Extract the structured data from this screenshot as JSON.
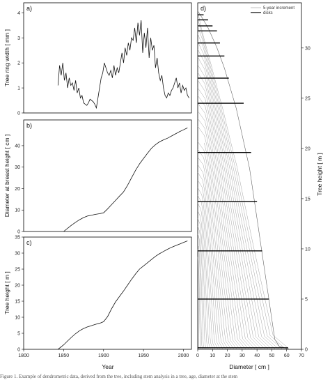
{
  "caption": "Figure 1. Example of dendrometric data, derived from the tree, including stem analysis in a tree, age, diameter at the stem",
  "chart_data": [
    {
      "id": "a",
      "panel_label": "a)",
      "type": "line",
      "ylabel": "Tree ring width [ mm ]",
      "xlim": [
        1800,
        2010
      ],
      "ylim": [
        0,
        4.4
      ],
      "yticks": [
        0,
        1,
        2,
        3,
        4
      ],
      "x": [
        1843,
        1845,
        1847,
        1849,
        1851,
        1853,
        1855,
        1857,
        1859,
        1861,
        1863,
        1865,
        1867,
        1869,
        1871,
        1873,
        1875,
        1877,
        1879,
        1881,
        1883,
        1885,
        1887,
        1889,
        1891,
        1893,
        1895,
        1897,
        1899,
        1901,
        1903,
        1905,
        1907,
        1909,
        1911,
        1913,
        1915,
        1917,
        1919,
        1921,
        1923,
        1925,
        1927,
        1929,
        1931,
        1933,
        1935,
        1937,
        1939,
        1941,
        1943,
        1945,
        1947,
        1949,
        1951,
        1953,
        1955,
        1957,
        1959,
        1961,
        1963,
        1965,
        1967,
        1969,
        1971,
        1973,
        1975,
        1977,
        1979,
        1981,
        1983,
        1985,
        1987,
        1989,
        1991,
        1993,
        1995,
        1997,
        1999,
        2001,
        2003,
        2005,
        2007
      ],
      "y": [
        1.1,
        1.9,
        1.5,
        2.0,
        1.3,
        1.6,
        1.0,
        1.4,
        1.1,
        1.2,
        0.9,
        1.3,
        0.8,
        1.0,
        0.6,
        0.7,
        0.4,
        0.35,
        0.3,
        0.4,
        0.55,
        0.5,
        0.45,
        0.35,
        0.2,
        0.6,
        1.0,
        1.4,
        1.6,
        2.0,
        1.8,
        1.6,
        1.5,
        1.7,
        1.4,
        1.9,
        1.5,
        1.8,
        1.6,
        2.0,
        2.4,
        2.0,
        2.6,
        2.3,
        2.8,
        2.5,
        3.0,
        2.9,
        3.4,
        2.8,
        3.6,
        3.1,
        3.7,
        2.4,
        3.2,
        2.6,
        3.4,
        2.2,
        3.0,
        2.5,
        2.7,
        1.8,
        2.2,
        1.6,
        1.3,
        1.5,
        1.0,
        0.7,
        0.6,
        0.8,
        0.7,
        0.9,
        1.0,
        1.2,
        1.4,
        1.0,
        1.2,
        0.8,
        1.1,
        0.9,
        1.0,
        0.7,
        0.6
      ]
    },
    {
      "id": "b",
      "panel_label": "b)",
      "type": "line",
      "ylabel": "Diameter at breast height [ cm ]",
      "xlim": [
        1800,
        2010
      ],
      "ylim": [
        0,
        52
      ],
      "yticks": [
        0,
        10,
        20,
        30,
        40
      ],
      "x": [
        1850,
        1855,
        1860,
        1865,
        1870,
        1875,
        1880,
        1885,
        1890,
        1895,
        1900,
        1905,
        1910,
        1915,
        1920,
        1925,
        1930,
        1935,
        1940,
        1945,
        1950,
        1955,
        1960,
        1965,
        1970,
        1975,
        1980,
        1985,
        1990,
        1995,
        2000,
        2005
      ],
      "y": [
        0,
        1.5,
        3,
        4.3,
        5.5,
        6.5,
        7.2,
        7.6,
        8.0,
        8.3,
        8.7,
        10.5,
        12.5,
        14.5,
        16.5,
        18.5,
        21.5,
        25,
        28.5,
        31.5,
        34,
        36.5,
        38.8,
        40.5,
        41.8,
        42.7,
        43.5,
        44.5,
        45.5,
        46.5,
        47.4,
        48.3
      ]
    },
    {
      "id": "c",
      "panel_label": "c)",
      "type": "line",
      "xlabel": "Year",
      "ylabel": "Tree height [ m ]",
      "xlim": [
        1800,
        2010
      ],
      "ylim": [
        0,
        35
      ],
      "yticks": [
        0,
        5,
        10,
        15,
        20,
        25,
        30,
        35
      ],
      "xticks": [
        1800,
        1850,
        1900,
        1950,
        2000
      ],
      "x": [
        1843,
        1850,
        1855,
        1860,
        1865,
        1870,
        1875,
        1880,
        1885,
        1890,
        1895,
        1900,
        1905,
        1910,
        1915,
        1920,
        1925,
        1930,
        1935,
        1940,
        1945,
        1950,
        1955,
        1960,
        1965,
        1970,
        1975,
        1980,
        1985,
        1990,
        1995,
        2000,
        2005
      ],
      "y": [
        0,
        1.4,
        2.6,
        3.8,
        4.9,
        5.8,
        6.5,
        7.0,
        7.4,
        7.8,
        8.1,
        8.6,
        10.2,
        12.6,
        14.8,
        16.5,
        18.2,
        20.0,
        21.8,
        23.5,
        25.0,
        26.0,
        27.0,
        28.0,
        29.0,
        29.8,
        30.5,
        31.2,
        31.8,
        32.3,
        32.8,
        33.3,
        33.8
      ]
    },
    {
      "id": "d",
      "panel_label": "d)",
      "type": "line",
      "xlabel": "Diameter [ cm ]",
      "ylabel": "Tree height [ m ]",
      "xlim": [
        0,
        70
      ],
      "ylim": [
        0,
        34.5
      ],
      "xticks": [
        0,
        10,
        20,
        30,
        40,
        50,
        60,
        70
      ],
      "yticks": [
        0,
        5,
        10,
        15,
        20,
        25,
        30
      ],
      "legend": {
        "position": "top-right",
        "entries": [
          {
            "label": "5-year increment",
            "style": "thin-grey"
          },
          {
            "label": "disks",
            "style": "thick-black"
          }
        ]
      },
      "outer_profile": {
        "height": [
          0,
          0.3,
          1,
          3,
          5,
          8,
          10,
          12,
          15,
          18,
          20,
          22,
          24,
          26,
          28,
          30,
          31,
          32,
          33,
          33.7
        ],
        "diameter": [
          62,
          55,
          52,
          50,
          48,
          45,
          43,
          41,
          38,
          35,
          32,
          29,
          26,
          22,
          18,
          13,
          10,
          7,
          3,
          0
        ]
      },
      "disks": [
        {
          "height": 0.15,
          "diameter": 61
        },
        {
          "height": 5.0,
          "diameter": 48
        },
        {
          "height": 9.8,
          "diameter": 43.5
        },
        {
          "height": 14.7,
          "diameter": 40
        },
        {
          "height": 19.6,
          "diameter": 36
        },
        {
          "height": 24.5,
          "diameter": 31
        },
        {
          "height": 27.0,
          "diameter": 21
        },
        {
          "height": 29.2,
          "diameter": 18
        },
        {
          "height": 30.5,
          "diameter": 15
        },
        {
          "height": 31.7,
          "diameter": 13
        },
        {
          "height": 32.2,
          "diameter": 10
        },
        {
          "height": 32.8,
          "diameter": 7
        },
        {
          "height": 33.3,
          "diameter": 4
        }
      ],
      "increment_count": 33
    }
  ]
}
